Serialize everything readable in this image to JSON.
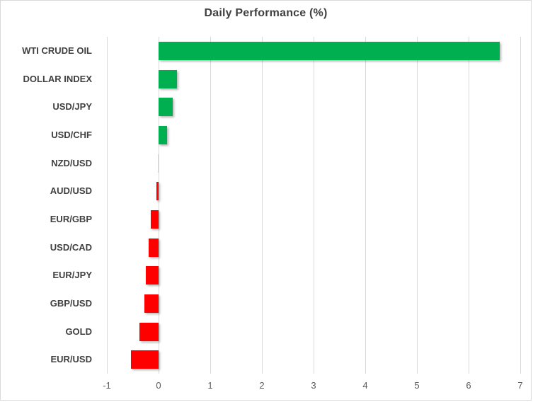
{
  "chart_data": {
    "type": "bar",
    "orientation": "horizontal",
    "title": "Daily Performance (%)",
    "categories": [
      "WTI CRUDE OIL",
      "DOLLAR INDEX",
      "USD/JPY",
      "USD/CHF",
      "NZD/USD",
      "AUD/USD",
      "EUR/GBP",
      "USD/CAD",
      "EUR/JPY",
      "GBP/USD",
      "GOLD",
      "EUR/USD"
    ],
    "values": [
      6.6,
      0.35,
      0.28,
      0.17,
      0.0,
      -0.04,
      -0.15,
      -0.19,
      -0.25,
      -0.28,
      -0.37,
      -0.53
    ],
    "xlabel": "",
    "ylabel": "",
    "xlim": [
      -1,
      7
    ],
    "xticks": [
      "-1",
      "0",
      "1",
      "2",
      "3",
      "4",
      "5",
      "6",
      "7"
    ],
    "grid": "vertical",
    "legend": "none",
    "colors": {
      "positive": "#00B050",
      "negative": "#FF0000",
      "zero_bar": "#D9D9D9",
      "gridline": "#D9D9D9",
      "border": "#D9D9D9",
      "background": "#FFFFFF",
      "title_text": "#404040",
      "category_text": "#404040",
      "tick_text": "#595959"
    }
  }
}
